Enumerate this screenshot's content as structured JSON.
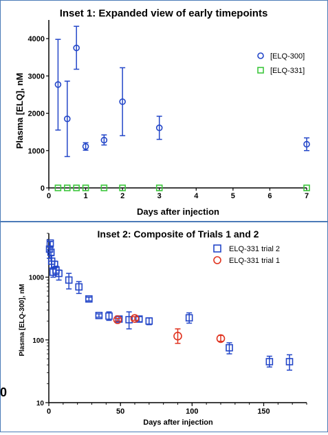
{
  "edge_label": "0",
  "chart_data": [
    {
      "type": "scatter",
      "title": "Inset 1: Expanded view of early timepoints",
      "xlabel": "Days after injection",
      "ylabel": "Plasma [ELQ], nM",
      "xlim": [
        0,
        7
      ],
      "ylim": [
        0,
        4500
      ],
      "xticks": [
        0,
        1,
        2,
        3,
        4,
        5,
        6,
        7
      ],
      "yticks": [
        0,
        1000,
        2000,
        3000,
        4000
      ],
      "legend_position": "right",
      "series": [
        {
          "name": "[ELQ-300]",
          "marker": "circle",
          "color": "#2346c8",
          "points": [
            {
              "x": 0.25,
              "y": 2770,
              "lo": 1550,
              "hi": 3980
            },
            {
              "x": 0.5,
              "y": 1850,
              "lo": 840,
              "hi": 2860
            },
            {
              "x": 0.75,
              "y": 3750,
              "lo": 3180,
              "hi": 4330
            },
            {
              "x": 1,
              "y": 1110,
              "lo": 1010,
              "hi": 1210
            },
            {
              "x": 1.5,
              "y": 1280,
              "lo": 1150,
              "hi": 1420
            },
            {
              "x": 2,
              "y": 2310,
              "lo": 1400,
              "hi": 3220
            },
            {
              "x": 3,
              "y": 1610,
              "lo": 1300,
              "hi": 1920
            },
            {
              "x": 7,
              "y": 1170,
              "lo": 1000,
              "hi": 1340
            }
          ]
        },
        {
          "name": "[ELQ-331]",
          "marker": "square",
          "color": "#3cc73c",
          "points": [
            {
              "x": 0.25,
              "y": 0
            },
            {
              "x": 0.5,
              "y": 0
            },
            {
              "x": 0.75,
              "y": 0
            },
            {
              "x": 1,
              "y": 0
            },
            {
              "x": 1.5,
              "y": 0
            },
            {
              "x": 2,
              "y": 0
            },
            {
              "x": 3,
              "y": 0
            },
            {
              "x": 7,
              "y": 0
            }
          ]
        }
      ]
    },
    {
      "type": "scatter",
      "title": "Inset 2: Composite of Trials 1 and 2",
      "xlabel": "Days after injection",
      "ylabel": "Plasma [ELQ-300], nM",
      "xlim": [
        0,
        180
      ],
      "ylim": [
        10,
        5000
      ],
      "yscale": "log",
      "xticks": [
        0,
        50,
        100,
        150
      ],
      "yticks": [
        10,
        100,
        1000
      ],
      "legend_position": "top-right",
      "series": [
        {
          "name": "ELQ-331 trial 2",
          "marker": "square",
          "color": "#2346c8",
          "points": [
            {
              "x": 0.5,
              "y": 2800,
              "lo": 2000,
              "hi": 3700
            },
            {
              "x": 1,
              "y": 3500,
              "lo": 3000,
              "hi": 3700
            },
            {
              "x": 1.5,
              "y": 2500,
              "lo": 1800,
              "hi": 3000
            },
            {
              "x": 2,
              "y": 1800,
              "lo": 1400,
              "hi": 2200
            },
            {
              "x": 3,
              "y": 1200,
              "lo": 1000,
              "hi": 1400
            },
            {
              "x": 4,
              "y": 1600,
              "lo": 1400,
              "hi": 1800
            },
            {
              "x": 5,
              "y": 1300,
              "lo": 1100,
              "hi": 1500
            },
            {
              "x": 7,
              "y": 1150,
              "lo": 900,
              "hi": 1300
            },
            {
              "x": 14,
              "y": 900,
              "lo": 650,
              "hi": 1150
            },
            {
              "x": 21,
              "y": 700,
              "lo": 550,
              "hi": 850
            },
            {
              "x": 28,
              "y": 450,
              "lo": 420,
              "hi": 480
            },
            {
              "x": 35,
              "y": 245,
              "lo": 230,
              "hi": 260
            },
            {
              "x": 42,
              "y": 240,
              "lo": 205,
              "hi": 280
            },
            {
              "x": 49,
              "y": 215,
              "lo": 195,
              "hi": 235
            },
            {
              "x": 56,
              "y": 210,
              "lo": 150,
              "hi": 280
            },
            {
              "x": 63,
              "y": 215,
              "lo": 195,
              "hi": 235
            },
            {
              "x": 70,
              "y": 200,
              "lo": 175,
              "hi": 225
            },
            {
              "x": 98,
              "y": 225,
              "lo": 185,
              "hi": 270
            },
            {
              "x": 126,
              "y": 75,
              "lo": 60,
              "hi": 90
            },
            {
              "x": 154,
              "y": 45,
              "lo": 37,
              "hi": 55
            },
            {
              "x": 168,
              "y": 45,
              "lo": 33,
              "hi": 58
            }
          ]
        },
        {
          "name": "ELQ-331 trial 1",
          "marker": "circle",
          "color": "#e0331f",
          "points": [
            {
              "x": 48,
              "y": 210,
              "lo": 200,
              "hi": 220
            },
            {
              "x": 60,
              "y": 220,
              "lo": 205,
              "hi": 235
            },
            {
              "x": 90,
              "y": 115,
              "lo": 88,
              "hi": 150
            },
            {
              "x": 120,
              "y": 105,
              "lo": 95,
              "hi": 118
            }
          ]
        }
      ]
    }
  ]
}
